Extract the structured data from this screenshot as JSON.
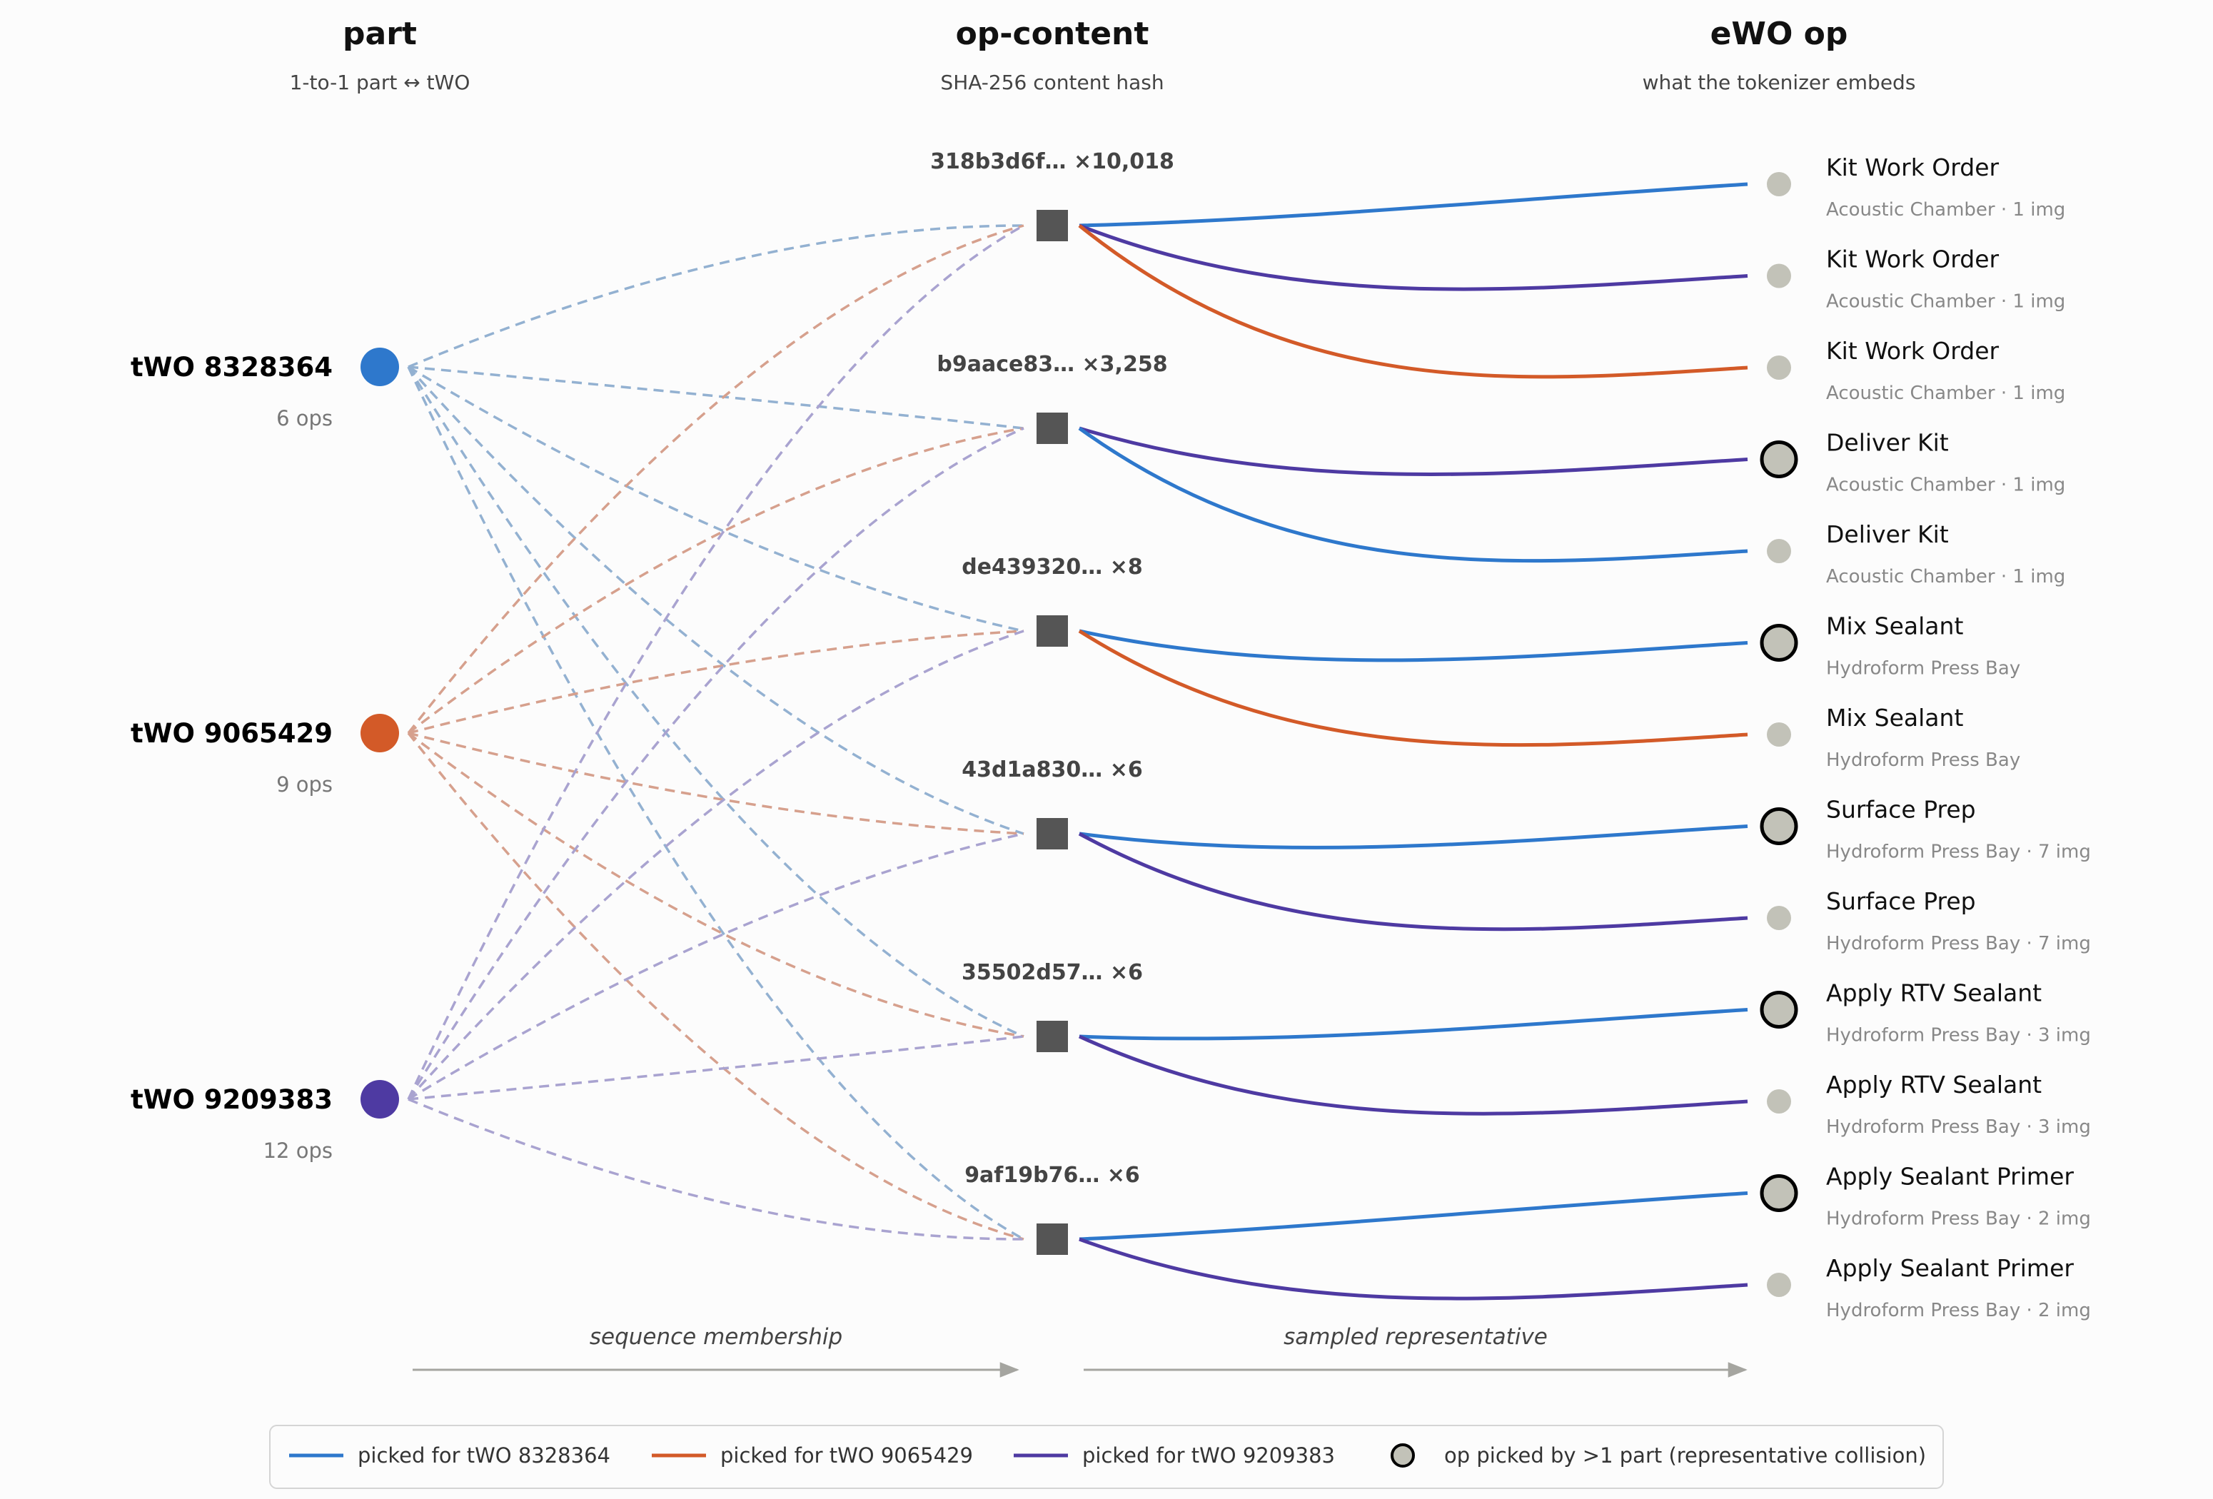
{
  "columns": {
    "part": {
      "title": "part",
      "subtitle": "1-to-1 part ↔ tWO"
    },
    "content": {
      "title": "op-content",
      "subtitle": "SHA-256 content hash"
    },
    "op": {
      "title": "eWO op",
      "subtitle": "what the tokenizer embeds"
    }
  },
  "parts": [
    {
      "id": "p1",
      "label": "tWO 8328364",
      "ops": "6 ops",
      "color": "#2e78cc",
      "link_color": "#93b1d1"
    },
    {
      "id": "p2",
      "label": "tWO 9065429",
      "ops": "9 ops",
      "color": "#d35a28",
      "link_color": "#d6a08d"
    },
    {
      "id": "p3",
      "label": "tWO 9209383",
      "ops": "12 ops",
      "color": "#4e3aa2",
      "link_color": "#a9a3d0"
    }
  ],
  "hashes": [
    {
      "id": "h1",
      "label": "318b3d6f…  ×10,018"
    },
    {
      "id": "h2",
      "label": "b9aace83…  ×3,258"
    },
    {
      "id": "h3",
      "label": "de439320…  ×8"
    },
    {
      "id": "h4",
      "label": "43d1a830…  ×6"
    },
    {
      "id": "h5",
      "label": "35502d57…  ×6"
    },
    {
      "id": "h6",
      "label": "9af19b76…  ×6"
    }
  ],
  "membership": {
    "p1": [
      "h1",
      "h2",
      "h3",
      "h4",
      "h5",
      "h6"
    ],
    "p2": [
      "h1",
      "h2",
      "h3",
      "h4",
      "h5",
      "h6"
    ],
    "p3": [
      "h1",
      "h2",
      "h3",
      "h4",
      "h5",
      "h6"
    ]
  },
  "ops": [
    {
      "name": "Kit Work Order",
      "detail": "Acoustic Chamber  ·  1 img",
      "collision": false
    },
    {
      "name": "Kit Work Order",
      "detail": "Acoustic Chamber  ·  1 img",
      "collision": false
    },
    {
      "name": "Kit Work Order",
      "detail": "Acoustic Chamber  ·  1 img",
      "collision": false
    },
    {
      "name": "Deliver Kit",
      "detail": "Acoustic Chamber  ·  1 img",
      "collision": true
    },
    {
      "name": "Deliver Kit",
      "detail": "Acoustic Chamber  ·  1 img",
      "collision": false
    },
    {
      "name": "Mix Sealant",
      "detail": "Hydroform Press Bay",
      "collision": true
    },
    {
      "name": "Mix Sealant",
      "detail": "Hydroform Press Bay",
      "collision": false
    },
    {
      "name": "Surface Prep",
      "detail": "Hydroform Press Bay  ·  7 img",
      "collision": true
    },
    {
      "name": "Surface Prep",
      "detail": "Hydroform Press Bay  ·  7 img",
      "collision": false
    },
    {
      "name": "Apply RTV Sealant",
      "detail": "Hydroform Press Bay  ·  3 img",
      "collision": true
    },
    {
      "name": "Apply RTV Sealant",
      "detail": "Hydroform Press Bay  ·  3 img",
      "collision": false
    },
    {
      "name": "Apply Sealant Primer",
      "detail": "Hydroform Press Bay  ·  2 img",
      "collision": true
    },
    {
      "name": "Apply Sealant Primer",
      "detail": "Hydroform Press Bay  ·  2 img",
      "collision": false
    }
  ],
  "picks": [
    {
      "hash": "h1",
      "op": 0,
      "part": "p1"
    },
    {
      "hash": "h1",
      "op": 1,
      "part": "p3"
    },
    {
      "hash": "h1",
      "op": 2,
      "part": "p2"
    },
    {
      "hash": "h2",
      "op": 3,
      "part": "p3"
    },
    {
      "hash": "h2",
      "op": 4,
      "part": "p1"
    },
    {
      "hash": "h3",
      "op": 5,
      "part": "p1"
    },
    {
      "hash": "h3",
      "op": 6,
      "part": "p2"
    },
    {
      "hash": "h4",
      "op": 7,
      "part": "p1"
    },
    {
      "hash": "h4",
      "op": 8,
      "part": "p3"
    },
    {
      "hash": "h5",
      "op": 9,
      "part": "p1"
    },
    {
      "hash": "h5",
      "op": 10,
      "part": "p3"
    },
    {
      "hash": "h6",
      "op": 11,
      "part": "p1"
    },
    {
      "hash": "h6",
      "op": 12,
      "part": "p3"
    }
  ],
  "flow_labels": {
    "left": "sequence membership",
    "right": "sampled representative"
  },
  "legend": {
    "items": [
      {
        "part": "p1",
        "label": "picked for tWO 8328364"
      },
      {
        "part": "p2",
        "label": "picked for tWO 9065429"
      },
      {
        "part": "p3",
        "label": "picked for tWO 9209383"
      }
    ],
    "collision_label": "op picked by >1 part (representative collision)"
  },
  "colors": {
    "op_node_fill": "#c2c2b8",
    "hash_node_fill": "#555555",
    "arrow": "#a5a5a0"
  }
}
